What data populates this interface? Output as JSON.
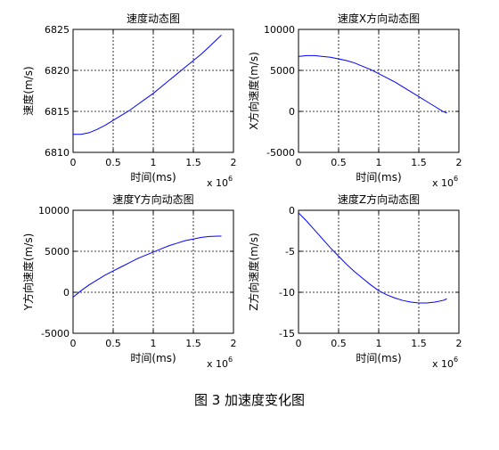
{
  "figure_caption": "图 3  加速度变化图",
  "chart_data": [
    {
      "type": "line",
      "title": "速度动态图",
      "xlabel": "时间(ms)",
      "ylabel": "速度(m/s)",
      "x_multiplier": "x 10",
      "x_exponent": "6",
      "xlim": [
        0,
        2
      ],
      "ylim": [
        6810,
        6825
      ],
      "xticks": [
        0,
        0.5,
        1,
        1.5,
        2
      ],
      "yticks": [
        6810,
        6815,
        6820,
        6825
      ],
      "grid": true,
      "color": "#0000ff",
      "series": [
        {
          "x": [
            0,
            0.1,
            0.2,
            0.3,
            0.4,
            0.5,
            0.6,
            0.7,
            0.8,
            0.9,
            1.0,
            1.1,
            1.2,
            1.3,
            1.4,
            1.5,
            1.6,
            1.7,
            1.85
          ],
          "y": [
            6812.2,
            6812.2,
            6812.4,
            6812.8,
            6813.3,
            6813.9,
            6814.5,
            6815.1,
            6815.8,
            6816.5,
            6817.2,
            6818.0,
            6818.8,
            6819.6,
            6820.4,
            6821.2,
            6822.0,
            6822.9,
            6824.3
          ]
        }
      ]
    },
    {
      "type": "line",
      "title": "速度X方向动态图",
      "xlabel": "时间(ms)",
      "ylabel": "X方向速度(m/s)",
      "x_multiplier": "x 10",
      "x_exponent": "6",
      "xlim": [
        0,
        2
      ],
      "ylim": [
        -5000,
        10000
      ],
      "xticks": [
        0,
        0.5,
        1,
        1.5,
        2
      ],
      "yticks": [
        -5000,
        0,
        5000,
        10000
      ],
      "grid": true,
      "color": "#0000ff",
      "series": [
        {
          "x": [
            0,
            0.1,
            0.2,
            0.3,
            0.4,
            0.5,
            0.6,
            0.7,
            0.8,
            0.9,
            1.0,
            1.1,
            1.2,
            1.3,
            1.4,
            1.5,
            1.6,
            1.7,
            1.8,
            1.85
          ],
          "y": [
            6700,
            6800,
            6800,
            6700,
            6600,
            6400,
            6200,
            5900,
            5500,
            5100,
            4600,
            4100,
            3600,
            3000,
            2400,
            1800,
            1200,
            600,
            0,
            -200
          ]
        }
      ]
    },
    {
      "type": "line",
      "title": "速度Y方向动态图",
      "xlabel": "时间(ms)",
      "ylabel": "Y方向速度(m/s)",
      "x_multiplier": "x 10",
      "x_exponent": "6",
      "xlim": [
        0,
        2
      ],
      "ylim": [
        -5000,
        10000
      ],
      "xticks": [
        0,
        0.5,
        1,
        1.5,
        2
      ],
      "yticks": [
        -5000,
        0,
        5000,
        10000
      ],
      "grid": true,
      "color": "#0000ff",
      "series": [
        {
          "x": [
            0,
            0.1,
            0.2,
            0.3,
            0.4,
            0.5,
            0.6,
            0.7,
            0.8,
            0.9,
            1.0,
            1.1,
            1.2,
            1.3,
            1.4,
            1.5,
            1.6,
            1.7,
            1.8,
            1.85
          ],
          "y": [
            -600,
            200,
            900,
            1500,
            2100,
            2600,
            3100,
            3600,
            4100,
            4500,
            4900,
            5300,
            5700,
            6000,
            6300,
            6500,
            6700,
            6800,
            6850,
            6850
          ]
        }
      ]
    },
    {
      "type": "line",
      "title": "速度Z方向动态图",
      "xlabel": "时间(ms)",
      "ylabel": "Z方向速度(m/s)",
      "x_multiplier": "x 10",
      "x_exponent": "6",
      "xlim": [
        0,
        2
      ],
      "ylim": [
        -15,
        0
      ],
      "xticks": [
        0,
        0.5,
        1,
        1.5,
        2
      ],
      "yticks": [
        -15,
        -10,
        -5,
        0
      ],
      "grid": true,
      "color": "#0000ff",
      "series": [
        {
          "x": [
            0,
            0.1,
            0.2,
            0.3,
            0.4,
            0.5,
            0.6,
            0.7,
            0.8,
            0.9,
            1.0,
            1.1,
            1.2,
            1.3,
            1.4,
            1.5,
            1.6,
            1.7,
            1.8,
            1.85
          ],
          "y": [
            -0.3,
            -1.3,
            -2.4,
            -3.5,
            -4.6,
            -5.6,
            -6.6,
            -7.5,
            -8.3,
            -9.1,
            -9.8,
            -10.3,
            -10.7,
            -11.0,
            -11.2,
            -11.3,
            -11.3,
            -11.2,
            -11.0,
            -10.8
          ]
        }
      ]
    }
  ]
}
